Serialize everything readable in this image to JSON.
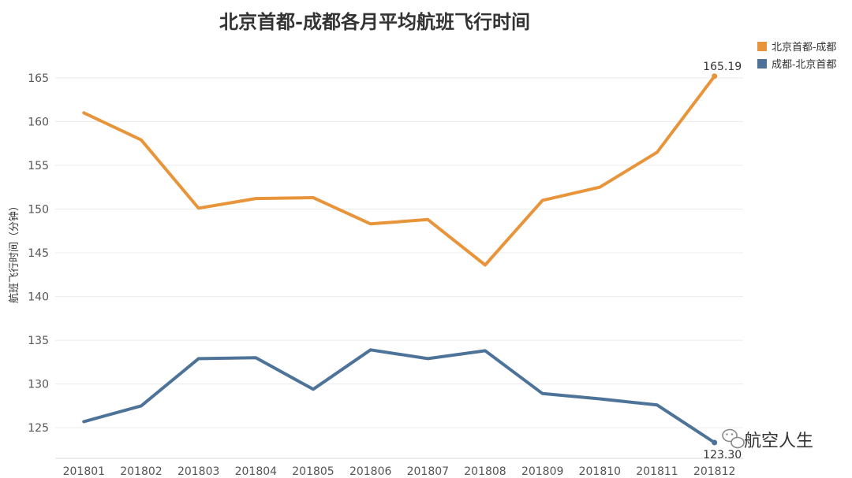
{
  "chart_data": {
    "type": "line",
    "title": "北京首都-成都各月平均航班飞行时间",
    "ylabel": "航班飞行时间（分钟）",
    "xlabel": "",
    "categories": [
      "201801",
      "201802",
      "201803",
      "201804",
      "201805",
      "201806",
      "201807",
      "201808",
      "201809",
      "201810",
      "201811",
      "201812"
    ],
    "ylim": [
      121.5,
      168.5
    ],
    "yticks": [
      125,
      130,
      135,
      140,
      145,
      150,
      155,
      160,
      165
    ],
    "grid": true,
    "legend_position": "top-right",
    "series": [
      {
        "name": "北京首都-成都",
        "color": "#E8943A",
        "values": [
          161.0,
          157.9,
          150.1,
          151.2,
          151.3,
          148.3,
          148.8,
          143.6,
          151.0,
          152.5,
          156.5,
          165.19
        ],
        "end_label": "165.19"
      },
      {
        "name": "成都-北京首都",
        "color": "#4E7399",
        "values": [
          125.7,
          127.5,
          132.9,
          133.0,
          129.4,
          133.9,
          132.9,
          133.8,
          128.9,
          128.3,
          127.6,
          123.3
        ],
        "end_label": "123.30"
      }
    ]
  },
  "watermark": {
    "icon": "wechat-icon",
    "text": "航空人生"
  }
}
